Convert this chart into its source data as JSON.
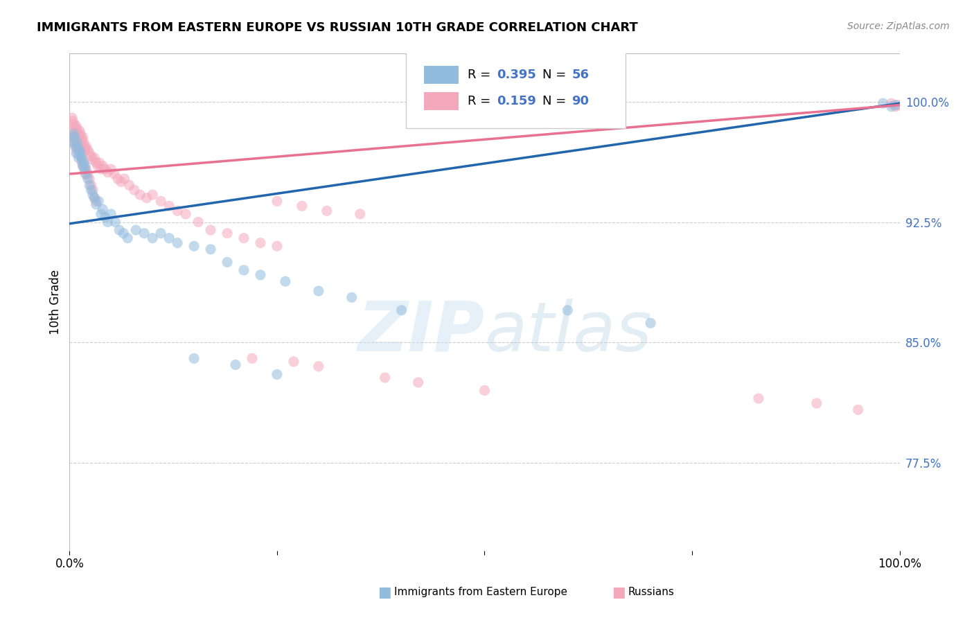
{
  "title": "IMMIGRANTS FROM EASTERN EUROPE VS RUSSIAN 10TH GRADE CORRELATION CHART",
  "source": "Source: ZipAtlas.com",
  "ylabel": "10th Grade",
  "ytick_labels": [
    "77.5%",
    "85.0%",
    "92.5%",
    "100.0%"
  ],
  "ytick_values": [
    0.775,
    0.85,
    0.925,
    1.0
  ],
  "xlim": [
    0.0,
    1.0
  ],
  "ylim": [
    0.72,
    1.03
  ],
  "blue_color": "#92bcde",
  "pink_color": "#f4a8bc",
  "line_blue": "#2166ac",
  "line_pink": "#e87090",
  "axis_label_color": "#4472c4",
  "grid_color": "#cccccc",
  "blue_line_start_y": 0.924,
  "blue_line_end_y": 0.999,
  "pink_line_start_y": 0.955,
  "pink_line_end_y": 0.998,
  "blue_scatter_x": [
    0.003,
    0.005,
    0.006,
    0.007,
    0.008,
    0.009,
    0.01,
    0.011,
    0.012,
    0.013,
    0.014,
    0.015,
    0.016,
    0.017,
    0.018,
    0.019,
    0.02,
    0.022,
    0.024,
    0.026,
    0.028,
    0.03,
    0.032,
    0.035,
    0.038,
    0.04,
    0.043,
    0.046,
    0.05,
    0.055,
    0.06,
    0.065,
    0.07,
    0.08,
    0.09,
    0.1,
    0.11,
    0.12,
    0.13,
    0.15,
    0.17,
    0.19,
    0.21,
    0.23,
    0.26,
    0.3,
    0.34,
    0.4,
    0.15,
    0.2,
    0.25,
    0.6,
    0.7,
    0.98,
    0.99,
    0.995
  ],
  "blue_scatter_y": [
    0.975,
    0.98,
    0.978,
    0.972,
    0.968,
    0.975,
    0.972,
    0.965,
    0.97,
    0.968,
    0.966,
    0.964,
    0.96,
    0.962,
    0.958,
    0.96,
    0.955,
    0.952,
    0.948,
    0.945,
    0.942,
    0.94,
    0.936,
    0.938,
    0.93,
    0.933,
    0.928,
    0.925,
    0.93,
    0.925,
    0.92,
    0.918,
    0.915,
    0.92,
    0.918,
    0.915,
    0.918,
    0.915,
    0.912,
    0.91,
    0.908,
    0.9,
    0.895,
    0.892,
    0.888,
    0.882,
    0.878,
    0.87,
    0.84,
    0.836,
    0.83,
    0.87,
    0.862,
    0.999,
    0.997,
    0.998
  ],
  "pink_scatter_x": [
    0.003,
    0.004,
    0.005,
    0.006,
    0.007,
    0.008,
    0.009,
    0.01,
    0.011,
    0.012,
    0.013,
    0.014,
    0.015,
    0.016,
    0.017,
    0.018,
    0.019,
    0.02,
    0.022,
    0.024,
    0.026,
    0.028,
    0.03,
    0.032,
    0.034,
    0.036,
    0.038,
    0.04,
    0.043,
    0.046,
    0.05,
    0.054,
    0.058,
    0.062,
    0.066,
    0.072,
    0.078,
    0.085,
    0.093,
    0.1,
    0.11,
    0.12,
    0.13,
    0.14,
    0.155,
    0.17,
    0.19,
    0.21,
    0.23,
    0.25,
    0.003,
    0.004,
    0.005,
    0.006,
    0.007,
    0.008,
    0.009,
    0.01,
    0.011,
    0.012,
    0.013,
    0.014,
    0.015,
    0.016,
    0.017,
    0.018,
    0.019,
    0.02,
    0.022,
    0.024,
    0.026,
    0.028,
    0.03,
    0.032,
    0.25,
    0.28,
    0.31,
    0.35,
    0.22,
    0.27,
    0.3,
    0.38,
    0.42,
    0.5,
    0.83,
    0.9,
    0.95,
    0.99,
    0.995,
    0.998
  ],
  "pink_scatter_y": [
    0.99,
    0.988,
    0.986,
    0.984,
    0.982,
    0.985,
    0.983,
    0.98,
    0.978,
    0.982,
    0.98,
    0.978,
    0.976,
    0.978,
    0.975,
    0.972,
    0.97,
    0.972,
    0.97,
    0.968,
    0.966,
    0.964,
    0.965,
    0.962,
    0.96,
    0.962,
    0.958,
    0.96,
    0.958,
    0.956,
    0.958,
    0.955,
    0.952,
    0.95,
    0.952,
    0.948,
    0.945,
    0.942,
    0.94,
    0.942,
    0.938,
    0.935,
    0.932,
    0.93,
    0.925,
    0.92,
    0.918,
    0.915,
    0.912,
    0.91,
    0.98,
    0.978,
    0.975,
    0.978,
    0.975,
    0.972,
    0.97,
    0.968,
    0.972,
    0.97,
    0.968,
    0.965,
    0.962,
    0.96,
    0.962,
    0.958,
    0.955,
    0.958,
    0.955,
    0.952,
    0.948,
    0.945,
    0.94,
    0.938,
    0.938,
    0.935,
    0.932,
    0.93,
    0.84,
    0.838,
    0.835,
    0.828,
    0.825,
    0.82,
    0.815,
    0.812,
    0.808,
    0.999,
    0.997,
    0.998
  ],
  "watermark_zip": "ZIP",
  "watermark_atlas": "atlas",
  "title_fontsize": 13
}
